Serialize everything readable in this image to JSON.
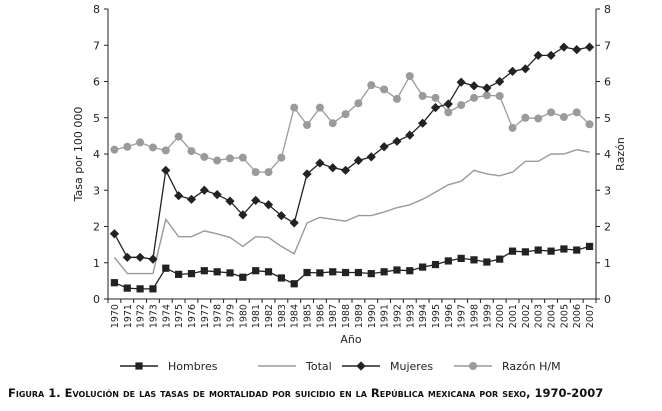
{
  "caption": "Figura 1. Evolución de las tasas de mortalidad por suicidio en la República mexicana por sexo, 1970-2007",
  "chart_data": {
    "type": "line",
    "xlabel": "Año",
    "ylabel_left": "Tasa por 100 000",
    "ylabel_right": "Razón",
    "ylim_left": [
      0,
      8
    ],
    "ylim_right": [
      0,
      8
    ],
    "yticks": [
      "0",
      "1",
      "2",
      "3",
      "4",
      "5",
      "6",
      "7",
      "8"
    ],
    "x": [
      "1970",
      "1971",
      "1972",
      "1973",
      "1974",
      "1975",
      "1976",
      "1977",
      "1978",
      "1979",
      "1980",
      "1981",
      "1982",
      "1983",
      "1984",
      "1985",
      "1986",
      "1987",
      "1988",
      "1989",
      "1990",
      "1991",
      "1992",
      "1993",
      "1994",
      "1995",
      "1996",
      "1997",
      "1998",
      "1999",
      "2000",
      "2001",
      "2002",
      "2003",
      "2004",
      "2005",
      "2006",
      "2007"
    ],
    "legend_position": "bottom",
    "series": [
      {
        "name": "Hombres",
        "axis": "left",
        "color": "#222222",
        "marker": "square",
        "values": [
          0.45,
          0.3,
          0.28,
          0.28,
          0.85,
          0.68,
          0.7,
          0.78,
          0.75,
          0.72,
          0.6,
          0.78,
          0.75,
          0.58,
          0.42,
          0.73,
          0.72,
          0.75,
          0.73,
          0.73,
          0.7,
          0.75,
          0.8,
          0.78,
          0.88,
          0.95,
          1.05,
          1.12,
          1.08,
          1.02,
          1.1,
          1.32,
          1.3,
          1.35,
          1.32,
          1.38,
          1.35,
          1.45
        ]
      },
      {
        "name": "Total",
        "axis": "left",
        "color": "#9a9a9a",
        "marker": "none",
        "values": [
          1.15,
          0.7,
          0.7,
          0.7,
          2.2,
          1.72,
          1.72,
          1.88,
          1.8,
          1.7,
          1.45,
          1.72,
          1.7,
          1.45,
          1.25,
          2.1,
          2.25,
          2.2,
          2.15,
          2.3,
          2.3,
          2.4,
          2.52,
          2.6,
          2.75,
          2.95,
          3.15,
          3.25,
          3.55,
          3.45,
          3.4,
          3.5,
          3.8,
          3.8,
          4.0,
          4.0,
          4.12,
          4.05
        ]
      },
      {
        "name": "Mujeres",
        "axis": "left",
        "color": "#222222",
        "marker": "diamond",
        "values": [
          1.8,
          1.15,
          1.15,
          1.1,
          3.55,
          2.85,
          2.75,
          3.0,
          2.88,
          2.7,
          2.32,
          2.72,
          2.6,
          2.3,
          2.1,
          3.45,
          3.75,
          3.62,
          3.55,
          3.82,
          3.92,
          4.2,
          4.35,
          4.52,
          4.85,
          5.28,
          5.38,
          5.98,
          5.88,
          5.82,
          6.0,
          6.28,
          6.35,
          6.72,
          6.72,
          6.95,
          6.88,
          6.95
        ]
      },
      {
        "name": "Razón H/M",
        "axis": "right",
        "color": "#9a9a9a",
        "marker": "circle",
        "values": [
          4.12,
          4.2,
          4.32,
          4.18,
          4.1,
          4.48,
          4.08,
          3.92,
          3.82,
          3.88,
          3.9,
          3.5,
          3.5,
          3.9,
          5.28,
          4.8,
          5.28,
          4.85,
          5.1,
          5.4,
          5.9,
          5.78,
          5.52,
          6.15,
          5.6,
          5.55,
          5.15,
          5.35,
          5.55,
          5.62,
          5.6,
          4.72,
          5.0,
          4.98,
          5.15,
          5.02,
          5.15,
          4.82
        ]
      }
    ]
  }
}
